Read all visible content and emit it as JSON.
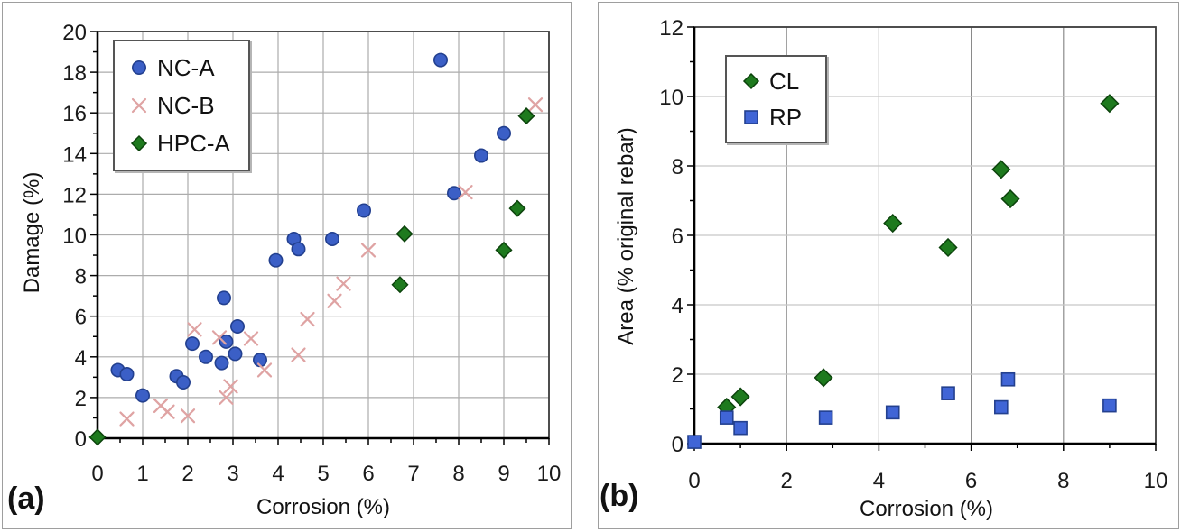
{
  "figure": {
    "background": "#ffffff",
    "panel_border_color": "#9e9e9e"
  },
  "chart_data": [
    {
      "type": "scatter",
      "panel_label": "(a)",
      "title": "",
      "xlabel": "Corrosion (%)",
      "ylabel": "Damage (%)",
      "xlim": [
        0,
        10
      ],
      "ylim": [
        0,
        20
      ],
      "x_ticks": [
        "0",
        "1",
        "2",
        "3",
        "4",
        "5",
        "6",
        "7",
        "8",
        "9",
        "10"
      ],
      "y_ticks": [
        "0",
        "2",
        "4",
        "6",
        "8",
        "10",
        "12",
        "14",
        "16",
        "18",
        "20"
      ],
      "x_major": 1,
      "y_major": 2,
      "x_minor": 0.5,
      "y_minor": 1,
      "grid": true,
      "legend_position": "upper left inside",
      "colors": {
        "grid_v": "#acacac",
        "grid_h": "#acacac",
        "frame": "#3c3c3c",
        "axis": "#000000",
        "tick_text": "#1a1a1a"
      },
      "series": [
        {
          "name": "NC-A",
          "marker": "circle",
          "size": 7.2,
          "fill": "#3b5fc6",
          "stroke": "#23408f",
          "points": [
            [
              0.45,
              3.35
            ],
            [
              0.65,
              3.15
            ],
            [
              1.0,
              2.1
            ],
            [
              1.75,
              3.05
            ],
            [
              1.9,
              2.75
            ],
            [
              2.1,
              4.65
            ],
            [
              2.4,
              4.0
            ],
            [
              2.75,
              3.7
            ],
            [
              2.8,
              6.9
            ],
            [
              2.85,
              4.75
            ],
            [
              3.05,
              4.15
            ],
            [
              3.1,
              5.5
            ],
            [
              3.6,
              3.85
            ],
            [
              3.95,
              8.75
            ],
            [
              4.35,
              9.8
            ],
            [
              4.45,
              9.3
            ],
            [
              5.2,
              9.8
            ],
            [
              5.9,
              11.2
            ],
            [
              7.6,
              18.6
            ],
            [
              7.9,
              12.05
            ],
            [
              8.5,
              13.9
            ],
            [
              9.0,
              15.0
            ]
          ]
        },
        {
          "name": "NC-B",
          "marker": "x",
          "size": 7,
          "fill": "none",
          "stroke": "#dfa3a3",
          "points": [
            [
              0.65,
              0.95
            ],
            [
              1.4,
              1.6
            ],
            [
              1.55,
              1.3
            ],
            [
              2.0,
              1.1
            ],
            [
              2.15,
              5.35
            ],
            [
              2.7,
              4.95
            ],
            [
              2.85,
              2.0
            ],
            [
              2.95,
              2.55
            ],
            [
              3.4,
              4.9
            ],
            [
              3.7,
              3.35
            ],
            [
              4.45,
              4.1
            ],
            [
              4.65,
              5.85
            ],
            [
              5.25,
              6.75
            ],
            [
              5.45,
              7.6
            ],
            [
              6.0,
              9.25
            ],
            [
              8.15,
              12.1
            ],
            [
              9.7,
              16.4
            ]
          ]
        },
        {
          "name": "HPC-A",
          "marker": "diamond",
          "size": 8.5,
          "fill": "#1e7a1e",
          "stroke": "#0c430c",
          "points": [
            [
              0.0,
              0.05
            ],
            [
              6.7,
              7.55
            ],
            [
              6.8,
              10.05
            ],
            [
              9.0,
              9.25
            ],
            [
              9.3,
              11.3
            ],
            [
              9.5,
              15.85
            ]
          ]
        }
      ]
    },
    {
      "type": "scatter",
      "panel_label": "(b)",
      "title": "",
      "xlabel": "Corrosion (%)",
      "ylabel": "Area (% original rebar)",
      "xlim": [
        0,
        10
      ],
      "ylim": [
        0,
        12
      ],
      "x_ticks": [
        "0",
        "2",
        "4",
        "6",
        "8",
        "10"
      ],
      "y_ticks": [
        "0",
        "2",
        "4",
        "6",
        "8",
        "10",
        "12"
      ],
      "x_major": 2,
      "y_major": 2,
      "x_minor": 1,
      "y_minor": 1,
      "grid": true,
      "legend_position": "upper left inside",
      "colors": {
        "grid_v": "#8a8a8a",
        "grid_h": "#c8c8c8",
        "frame": "#3c3c3c",
        "axis": "#000000",
        "tick_text": "#1a1a1a"
      },
      "series": [
        {
          "name": "CL",
          "marker": "diamond",
          "size": 9.5,
          "fill": "#1e7a1e",
          "stroke": "#0c430c",
          "points": [
            [
              0.7,
              1.05
            ],
            [
              1.0,
              1.35
            ],
            [
              2.8,
              1.9
            ],
            [
              4.3,
              6.35
            ],
            [
              5.5,
              5.65
            ],
            [
              6.65,
              7.9
            ],
            [
              6.85,
              7.05
            ],
            [
              9.0,
              9.8
            ]
          ]
        },
        {
          "name": "RP",
          "marker": "square",
          "size": 7,
          "fill": "#4065d6",
          "stroke": "#23408f",
          "points": [
            [
              0.0,
              0.05
            ],
            [
              0.7,
              0.75
            ],
            [
              1.0,
              0.45
            ],
            [
              2.85,
              0.75
            ],
            [
              4.3,
              0.9
            ],
            [
              5.5,
              1.45
            ],
            [
              6.65,
              1.05
            ],
            [
              6.8,
              1.85
            ],
            [
              9.0,
              1.1
            ]
          ]
        }
      ]
    }
  ]
}
